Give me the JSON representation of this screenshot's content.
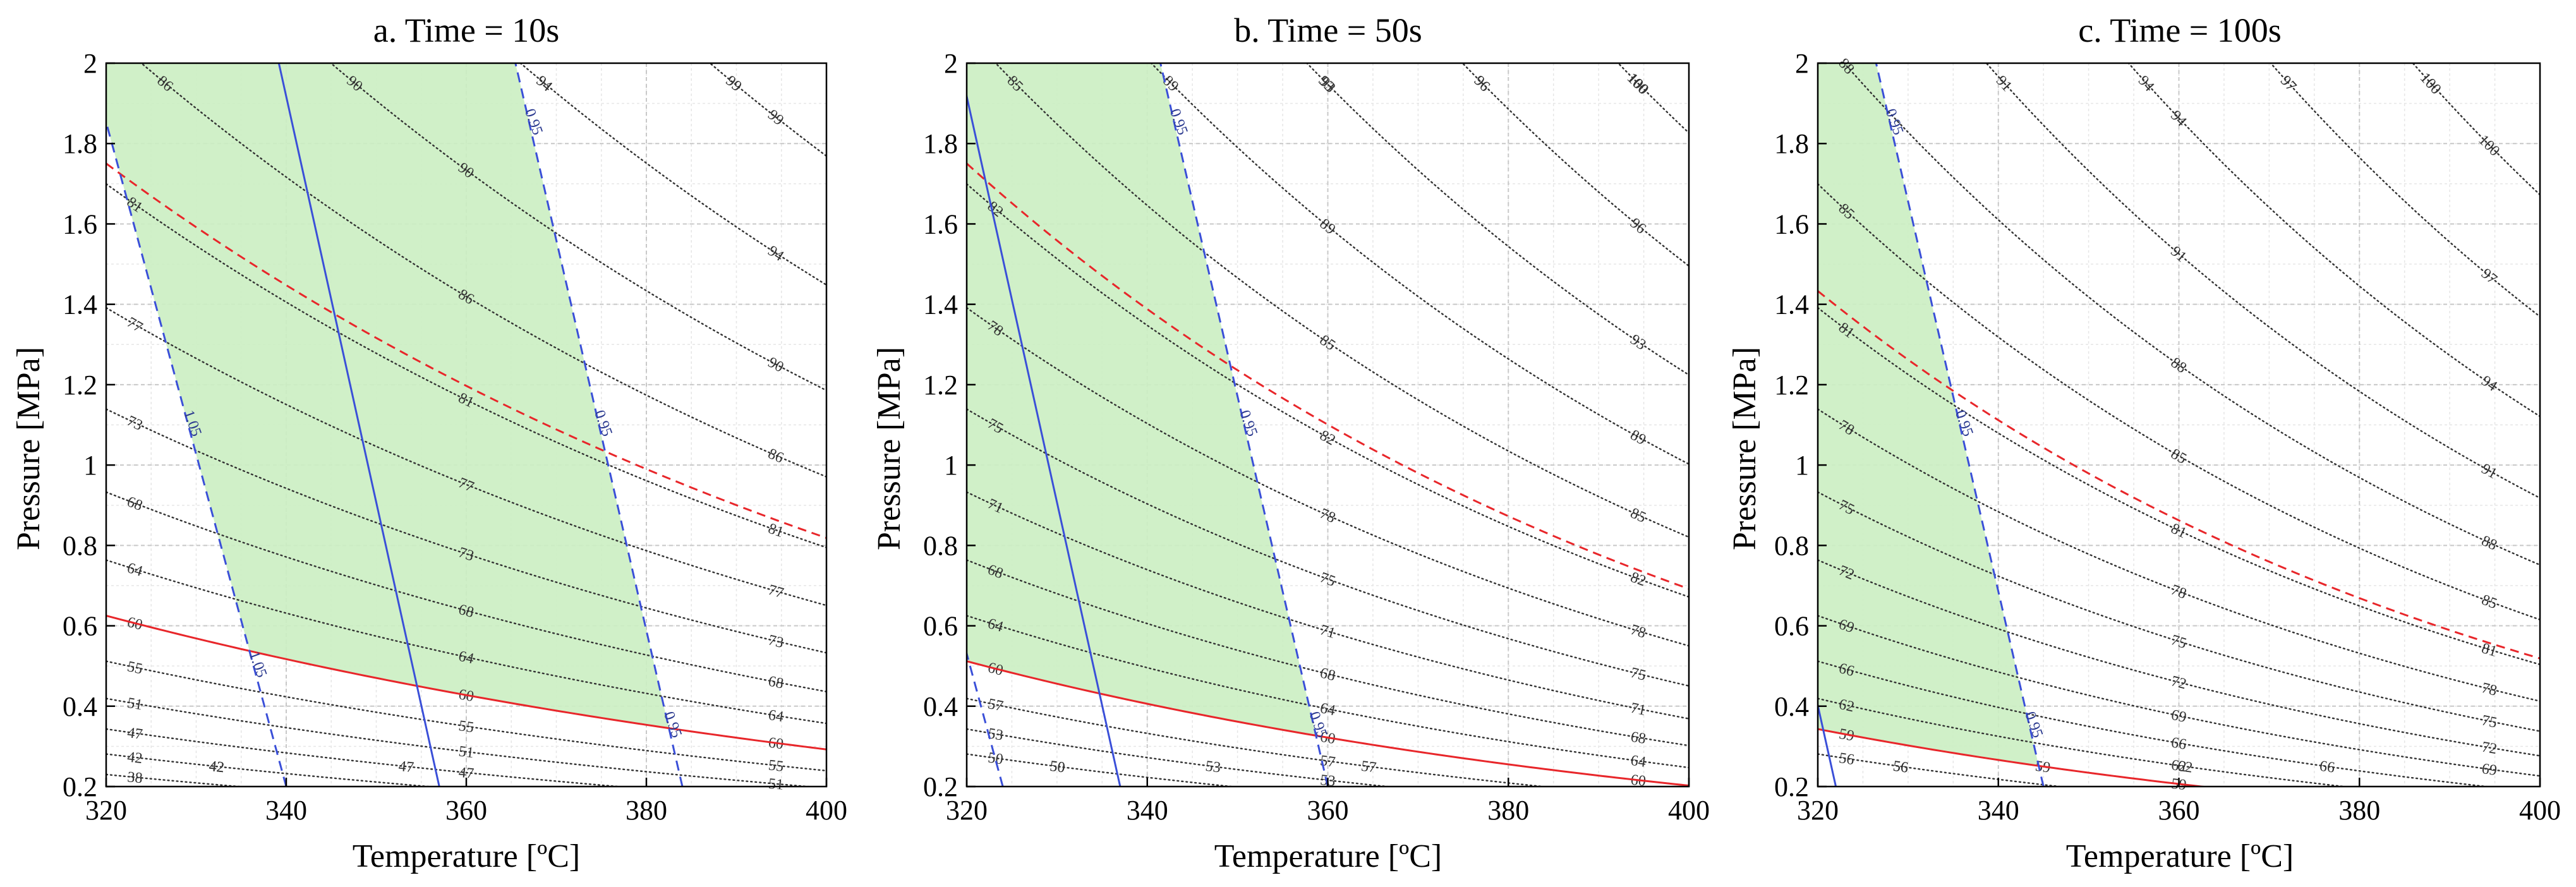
{
  "chart_data": [
    {
      "type": "contour",
      "title": "a. Time = 10s",
      "xlabel": "Temperature [ºC]",
      "ylabel": "Pressure [MPa]",
      "xlim": [
        320,
        400
      ],
      "ylim": [
        0.2,
        2
      ],
      "xticks": [
        "320",
        "340",
        "360",
        "380",
        "400"
      ],
      "yticks": [
        "0.2",
        "0.4",
        "0.6",
        "0.8",
        "1",
        "1.2",
        "1.4",
        "1.6",
        "1.8",
        "2"
      ],
      "grid": true,
      "levels": [
        "38",
        "42",
        "47",
        "51",
        "55",
        "60",
        "64",
        "68",
        "73",
        "77",
        "81",
        "86",
        "90",
        "94",
        "99"
      ],
      "red_solid_level": "60",
      "red_dashed_level": "81",
      "blue_solid_ratio": "1",
      "blue_dashed_ratios": [
        "1.05",
        "0.95"
      ],
      "shaded_region": "between ratio 1.05 and 0.95, above 60 contour"
    },
    {
      "type": "contour",
      "title": "b. Time = 50s",
      "xlabel": "Temperature [ºC]",
      "ylabel": "Pressure [MPa]",
      "xlim": [
        320,
        400
      ],
      "ylim": [
        0.2,
        2
      ],
      "xticks": [
        "320",
        "340",
        "360",
        "380",
        "400"
      ],
      "yticks": [
        "0.2",
        "0.4",
        "0.6",
        "0.8",
        "1",
        "1.2",
        "1.4",
        "1.6",
        "1.8",
        "2"
      ],
      "grid": true,
      "levels": [
        "50",
        "53",
        "57",
        "60",
        "64",
        "68",
        "71",
        "75",
        "78",
        "82",
        "85",
        "89",
        "93",
        "96",
        "100"
      ],
      "red_solid_level": "60",
      "red_dashed_level": "82",
      "blue_solid_ratio": "1",
      "blue_dashed_ratios": [
        "1.05",
        "0.95"
      ],
      "shaded_region": "between ratio 1.05 and 0.95, above 60 contour"
    },
    {
      "type": "contour",
      "title": "c. Time = 100s",
      "xlabel": "Temperature [ºC]",
      "ylabel": "Pressure [MPa]",
      "xlim": [
        320,
        400
      ],
      "ylim": [
        0.2,
        2
      ],
      "xticks": [
        "320",
        "340",
        "360",
        "380",
        "400"
      ],
      "yticks": [
        "0.2",
        "0.4",
        "0.6",
        "0.8",
        "1",
        "1.2",
        "1.4",
        "1.6",
        "1.8",
        "2"
      ],
      "grid": true,
      "levels": [
        "56",
        "59",
        "62",
        "66",
        "69",
        "72",
        "75",
        "78",
        "81",
        "85",
        "88",
        "91",
        "94",
        "97",
        "100"
      ],
      "red_solid_level": "59",
      "red_dashed_level": "81",
      "blue_solid_ratio": "1",
      "blue_dashed_ratios": [
        "1.05",
        "0.95"
      ],
      "shaded_region": "between ratio 1.05 and 0.95, above 59 contour"
    }
  ]
}
